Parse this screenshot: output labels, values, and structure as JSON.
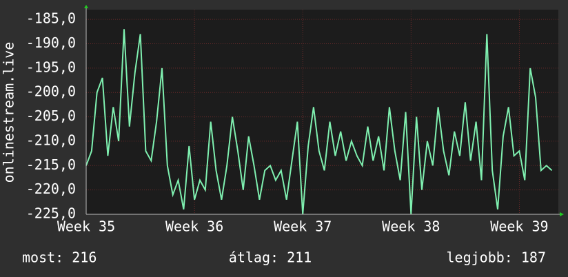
{
  "chart_data": {
    "type": "line",
    "y_label": "onlinestream.live",
    "x": [
      35.0,
      35.05,
      35.1,
      35.15,
      35.2,
      35.25,
      35.3,
      35.35,
      35.4,
      35.45,
      35.5,
      35.55,
      35.6,
      35.65,
      35.7,
      35.75,
      35.8,
      35.85,
      35.9,
      35.95,
      36.0,
      36.05,
      36.1,
      36.15,
      36.2,
      36.25,
      36.3,
      36.35,
      36.4,
      36.45,
      36.5,
      36.55,
      36.6,
      36.65,
      36.7,
      36.75,
      36.8,
      36.85,
      36.9,
      36.95,
      37.0,
      37.05,
      37.1,
      37.15,
      37.2,
      37.25,
      37.3,
      37.35,
      37.4,
      37.45,
      37.5,
      37.55,
      37.6,
      37.65,
      37.7,
      37.75,
      37.8,
      37.85,
      37.9,
      37.95,
      38.0,
      38.05,
      38.1,
      38.15,
      38.2,
      38.25,
      38.3,
      38.35,
      38.4,
      38.45,
      38.5,
      38.55,
      38.6,
      38.65,
      38.7,
      38.75,
      38.8,
      38.85,
      38.9,
      38.95,
      39.0,
      39.05,
      39.1,
      39.15,
      39.2,
      39.25,
      39.3
    ],
    "series": [
      {
        "color": "#7ff0b0",
        "values": [
          -215,
          -212,
          -200,
          -197,
          -213,
          -203,
          -210,
          -187,
          -207,
          -196,
          -188,
          -212,
          -214,
          -206,
          -195,
          -215,
          -221,
          -218,
          -224,
          -211,
          -222,
          -218,
          -220,
          -206,
          -216,
          -222,
          -215,
          -205,
          -212,
          -220,
          -209,
          -215,
          -222,
          -216,
          -215,
          -218,
          -216,
          -222,
          -214,
          -206,
          -225,
          -211,
          -203,
          -212,
          -216,
          -206,
          -213,
          -208,
          -214,
          -210,
          -213,
          -215,
          -207,
          -214,
          -209,
          -216,
          -203,
          -212,
          -218,
          -204,
          -225,
          -205,
          -220,
          -210,
          -215,
          -203,
          -212,
          -217,
          -208,
          -213,
          -202,
          -214,
          -206,
          -218,
          -188,
          -216,
          -224,
          -209,
          -203,
          -213,
          -212,
          -218,
          -195,
          -201,
          -216,
          -215,
          -216
        ]
      }
    ],
    "xlim": [
      35,
      39.36
    ],
    "xticks": [
      {
        "value": 35,
        "label": "Week 35"
      },
      {
        "value": 36,
        "label": "Week 36"
      },
      {
        "value": 37,
        "label": "Week 37"
      },
      {
        "value": 38,
        "label": "Week 38"
      },
      {
        "value": 39,
        "label": "Week 39"
      }
    ],
    "ylim": [
      -225,
      -183
    ],
    "yticks": [
      {
        "value": -225,
        "label": "-225,0"
      },
      {
        "value": -220,
        "label": "-220,0"
      },
      {
        "value": -215,
        "label": "-215,0"
      },
      {
        "value": -210,
        "label": "-210,0"
      },
      {
        "value": -205,
        "label": "-205,0"
      },
      {
        "value": -200,
        "label": "-200,0"
      },
      {
        "value": -195,
        "label": "-195,0"
      },
      {
        "value": -190,
        "label": "-190,0"
      },
      {
        "value": -185,
        "label": "-185,0"
      }
    ],
    "grid": true,
    "footer": {
      "current": "most: 216",
      "average": "átlag: 211",
      "best": "legjobb: 187"
    }
  }
}
